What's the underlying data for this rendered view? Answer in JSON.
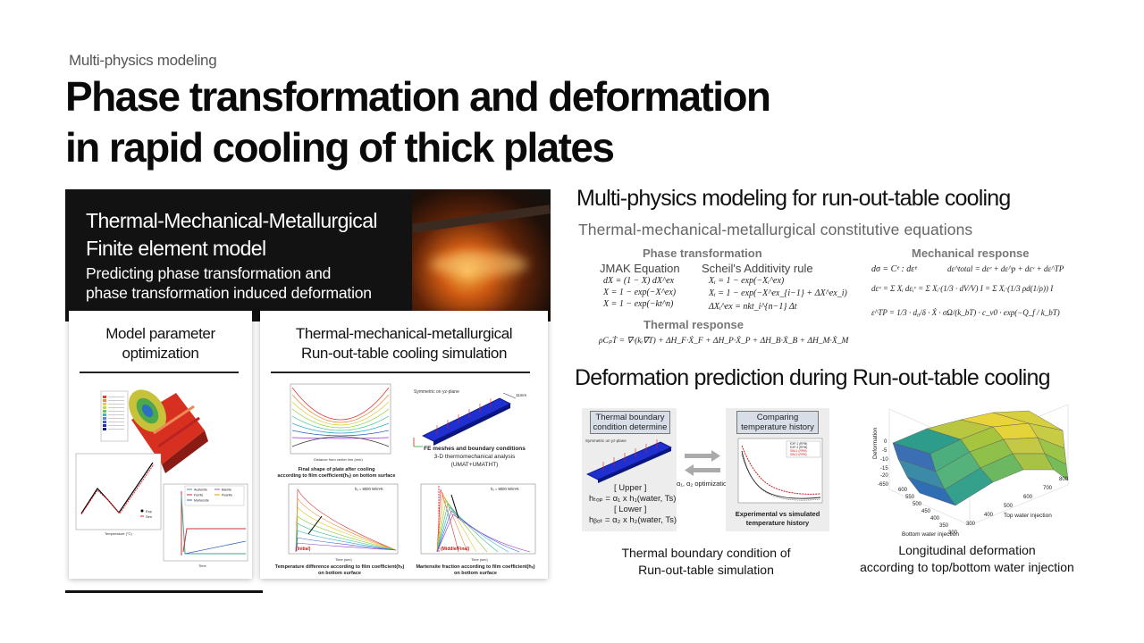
{
  "header": {
    "kicker": "Multi-physics modeling",
    "title_line1": "Phase transformation and deformation",
    "title_line2": "in rapid cooling of thick plates"
  },
  "hero": {
    "line1": "Thermal-Mechanical-Metallurgical",
    "line2": "Finite element model",
    "sub1": "Predicting phase transformation and",
    "sub2": "phase transformation induced deformation"
  },
  "card_left": {
    "title1": "Model parameter",
    "title2": "optimization",
    "legend": [
      "Austenite",
      "Ferrite",
      "Martensite",
      "Bainite",
      "Pearlite"
    ],
    "exp_sim": [
      "Exp",
      "Sim"
    ],
    "xlabel": "Temperature (°C)",
    "ylabel2": "Time"
  },
  "card_right": {
    "title1": "Thermal-mechanical-metallurgical",
    "title2": "Run-out-table cooling simulation",
    "tl_cap1": "Final shape of plate after cooling",
    "tl_cap2": "according to film coefficient(hₓ) on bottom surface",
    "tl_xlabel": "Distance from center line (mm)",
    "tr_note": "Symmetric on yz-plane",
    "tr_dim": "11mm",
    "tr_cap1": "FE meshes and boundary conditions",
    "tr_cap2": "3-D thermomechanical analysis",
    "tr_cap3": "(UMAT+UMATHT)",
    "bl_h": "hₓ = 8000 W/m²K",
    "bl_tag": "(Initial)",
    "bl_cap1": "Temperature difference according to film coefficient(hₓ)",
    "bl_cap2": "on bottom surface",
    "br_h": "hₓ = 8000 W/m²K",
    "br_tag": "(Middle/Final)",
    "br_cap1": "Martensite fraction according to film coefficient(hₓ)",
    "br_cap2": "on bottom surface",
    "time_label": "Time (sec)"
  },
  "section1": {
    "heading": "Multi-physics modeling for run-out-table cooling",
    "sub": "Thermal-mechanical-metallurgical constitutive equations",
    "phase_head": "Phase transformation",
    "mech_head": "Mechanical response",
    "thermal_head": "Thermal response",
    "jmak": "JMAK Equation",
    "scheil": "Scheil's Additivity rule",
    "eq_jmak": [
      "dX = (1 − X) dX^ex",
      "X = 1 − exp(−X^ex)",
      "X = 1 − exp(−kt^n)"
    ],
    "eq_scheil": [
      "Xᵢ = 1 − exp(−Xᵢ^ex)",
      "Xᵢ = 1 − exp(−X^ex_{i−1} + ΔX^ex_i)",
      "ΔXᵢ^ex = nkt_i^{n−1} Δt"
    ],
    "eq_mech": [
      "dσ = Cᵉ : dεᵉ",
      "dε^total = dεᵉ + dε^p + dεᵛ + dε^TP",
      "dεᵛ = Σ Xᵢ dεᵢᵛ = Σ Xᵢ·(1/3 · dV/V) I = Σ Xᵢ·(1/3 ρd(1/ρ)) I",
      "ε^TP = 1/3 · d₀/δ · Ẋ · σΩ/(k_bT) · c_v0 · exp(−Q_f / k_bT)"
    ],
    "eq_thermal": "ρCₚṪ = ∇·(kᵢ∇T) + ΔH_F·Ẋ_F + ΔH_P·Ẋ_P + ΔH_B·Ẋ_B + ΔH_M·Ẋ_M"
  },
  "section2": {
    "heading": "Deformation prediction during Run-out-table cooling",
    "tag_left1": "Thermal boundary",
    "tag_left2": "condition determine",
    "tag_right1": "Comparing",
    "tag_right2": "temperature history",
    "sym_note": "Symmetric on yz-plane",
    "upper": "[ Upper ]",
    "h_top": "hₜₒₚ = α₁ x h₁(water, Ts)",
    "lower": "[ Lower ]",
    "h_bot": "hᵦₒₜ = α₂ x h₂(water, Ts)",
    "opt_label": "α₁, α₂ optimization",
    "exp_vs_sim1": "Experimental vs simulated",
    "exp_vs_sim2": "temperature history",
    "legend_right": [
      "EXP-1 (RPM)",
      "EXP-2 (RPM)",
      "SIM-1 (RPM)",
      "SIM-2 (RPM)"
    ],
    "caption_left1": "Thermal boundary condition of",
    "caption_left2": "Run-out-table simulation",
    "caption_right1": "Longitudinal deformation",
    "caption_right2": "according to top/bottom water injection",
    "surf_zlabel": "Deformation",
    "surf_xlabel": "Top water injection",
    "surf_ylabel": "Bottom water injection",
    "surf_zticks": [
      "0",
      "-5",
      "-10",
      "-15",
      "-20",
      "-650"
    ],
    "surf_yticks": [
      "600",
      "550",
      "500",
      "450",
      "400",
      "350",
      "300"
    ],
    "surf_xticks": [
      "300",
      "400",
      "500",
      "600",
      "700",
      "800"
    ]
  },
  "colors": {
    "hero_bg": "#121212",
    "plate_blue": "#1f2fd0",
    "accent_red": "#cc1b1b"
  }
}
